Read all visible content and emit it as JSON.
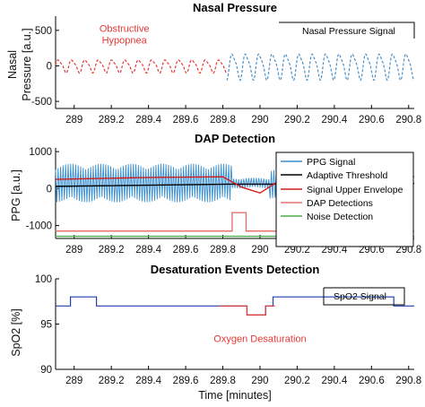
{
  "colors": {
    "nasal": "#4a90c8",
    "obstructive": "#e53935",
    "ppg": "#3a8fd1",
    "threshold": "#000000",
    "envelope": "#d11b1b",
    "dap": "#e57373",
    "noise": "#4caf50",
    "spo2": "#1f3fae",
    "desat": "#e53935",
    "annotation_red": "#e53935"
  },
  "chart_data": [
    {
      "id": "nasal",
      "type": "line",
      "title": "Nasal Pressure",
      "ylabel": "Nasal Pressure [a.u.]",
      "ylabel_lines": [
        "Nasal",
        "Pressure [a.u.]"
      ],
      "xlim": [
        288.9,
        290.83
      ],
      "ylim": [
        -600,
        700
      ],
      "yticks": [
        -500,
        0,
        500
      ],
      "xticks": [
        289,
        289.2,
        289.4,
        289.6,
        289.8,
        290,
        290.2,
        290.4,
        290.6,
        290.8
      ],
      "xtick_labels": [
        "289",
        "289.2",
        "289.4",
        "289.6",
        "289.8",
        "290",
        "290.2",
        "290.4",
        "290.6",
        "290.8"
      ],
      "annotation": {
        "lines": [
          "Obstructive",
          "Hypopnea"
        ],
        "x": 289.27,
        "y": 480
      },
      "legend": [
        "Nasal Pressure Signal"
      ],
      "series": [
        {
          "name": "Nasal Pressure Signal",
          "x_start": 288.9,
          "x_end": 290.83,
          "period": 0.072,
          "segments": [
            {
              "x_start": 288.9,
              "x_end": 289.82,
              "amplitude": 85,
              "color_key": "obstructive",
              "style": "dashed"
            },
            {
              "x_start": 289.82,
              "x_end": 290.83,
              "amplitude": 170,
              "color_key": "nasal",
              "style": "dashed"
            }
          ]
        }
      ]
    },
    {
      "id": "dap",
      "type": "line",
      "title": "DAP Detection",
      "ylabel": "PPG [a.u.]",
      "xlim": [
        288.9,
        290.83
      ],
      "ylim": [
        -1350,
        1100
      ],
      "yticks": [
        -1000,
        0,
        1000
      ],
      "xticks": [
        289,
        289.2,
        289.4,
        289.6,
        289.8,
        290,
        290.2,
        290.4,
        290.6,
        290.8
      ],
      "xtick_labels": [
        "289",
        "289.2",
        "289.4",
        "289.6",
        "289.8",
        "290",
        "290.2",
        "290.4",
        "290.6",
        "290.8"
      ],
      "legend": [
        "PPG Signal",
        "Adaptive Threshold",
        "Signal Upper Envelope",
        "DAP Detections",
        "Noise Detection"
      ],
      "series": [
        {
          "name": "PPG Signal",
          "color_key": "ppg",
          "x_start": 288.9,
          "x_end": 290.83,
          "cycle": 0.0135,
          "segments": [
            {
              "x_start": 288.9,
              "x_end": 289.85,
              "amplitude": 520
            },
            {
              "x_start": 289.85,
              "x_end": 290.05,
              "amplitude": 140
            },
            {
              "x_start": 290.05,
              "x_end": 290.83,
              "amplitude": 420
            }
          ]
        },
        {
          "name": "Adaptive Threshold",
          "color_key": "threshold",
          "points": [
            [
              288.9,
              60
            ],
            [
              289.85,
              120
            ],
            [
              290.05,
              120
            ],
            [
              290.83,
              140
            ]
          ]
        },
        {
          "name": "Signal Upper Envelope",
          "color_key": "envelope",
          "points": [
            [
              288.9,
              250
            ],
            [
              289.4,
              300
            ],
            [
              289.8,
              320
            ],
            [
              289.9,
              40
            ],
            [
              290.0,
              -120
            ],
            [
              290.1,
              200
            ],
            [
              290.5,
              300
            ],
            [
              290.83,
              320
            ]
          ]
        },
        {
          "name": "DAP Detections",
          "color_key": "dap",
          "points": [
            [
              288.9,
              -1150
            ],
            [
              289.85,
              -1150
            ],
            [
              289.85,
              -650
            ],
            [
              289.925,
              -650
            ],
            [
              289.925,
              -1150
            ],
            [
              290.83,
              -1150
            ]
          ]
        },
        {
          "name": "Noise Detection",
          "color_key": "noise",
          "points": [
            [
              288.9,
              -1290
            ],
            [
              290.83,
              -1290
            ]
          ]
        }
      ]
    },
    {
      "id": "spo2",
      "type": "line",
      "title": "Desaturation Events Detection",
      "ylabel": "SpO2 [%]",
      "xlabel": "Time [minutes]",
      "xlim": [
        288.9,
        290.83
      ],
      "ylim": [
        90,
        100
      ],
      "yticks": [
        90,
        95,
        100
      ],
      "xticks": [
        289,
        289.2,
        289.4,
        289.6,
        289.8,
        290,
        290.2,
        290.4,
        290.6,
        290.8
      ],
      "xtick_labels": [
        "289",
        "289.2",
        "289.4",
        "289.6",
        "289.8",
        "290",
        "290.2",
        "290.4",
        "290.6",
        "290.8"
      ],
      "annotation": {
        "lines": [
          "Oxygen Desaturation"
        ],
        "x": 290.0,
        "y": 93.0
      },
      "legend": [
        "SpO2 Signal"
      ],
      "series": [
        {
          "name": "SpO2 Signal",
          "color_key": "spo2",
          "points": [
            [
              288.9,
              97
            ],
            [
              288.98,
              97
            ],
            [
              288.98,
              98
            ],
            [
              289.12,
              98
            ],
            [
              289.12,
              97
            ],
            [
              289.82,
              97
            ],
            [
              289.82,
              97
            ],
            [
              289.93,
              97
            ],
            [
              289.93,
              96
            ],
            [
              290.03,
              96
            ],
            [
              290.03,
              97
            ],
            [
              290.07,
              97
            ],
            [
              290.07,
              98
            ],
            [
              290.72,
              98
            ],
            [
              290.72,
              97
            ],
            [
              290.83,
              97
            ]
          ]
        },
        {
          "name": "Oxygen Desaturation",
          "color_key": "desat",
          "points": [
            [
              289.78,
              97
            ],
            [
              289.93,
              97
            ],
            [
              289.93,
              96
            ],
            [
              290.03,
              96
            ],
            [
              290.03,
              97
            ],
            [
              290.08,
              97
            ]
          ]
        }
      ]
    }
  ]
}
